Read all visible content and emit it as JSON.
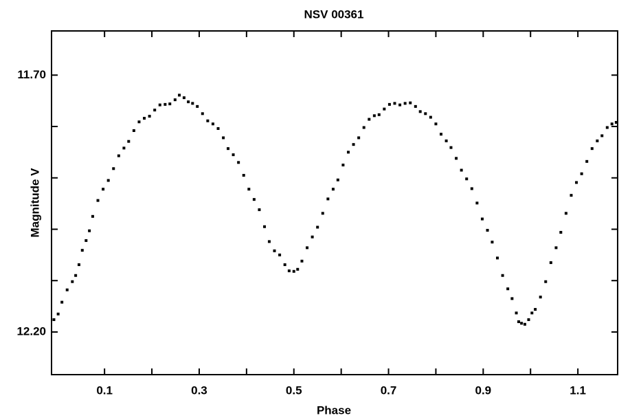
{
  "chart_data": {
    "type": "scatter",
    "title": "NSV 00361",
    "x_label": "Phase",
    "y_label": "Magnitude V",
    "xlim": [
      -0.012,
      1.184
    ],
    "ylim": [
      11.614,
      12.283
    ],
    "y_inverted": true,
    "xticks": [
      0.1,
      0.3,
      0.5,
      0.7,
      0.9,
      1.1
    ],
    "xminor_ticks": [
      0.2,
      0.4,
      0.6,
      0.8,
      1.0
    ],
    "yticks": [
      {
        "value": 11.7,
        "label": "11.70"
      },
      {
        "value": 12.2,
        "label": "12.20"
      }
    ],
    "yminor_ticks": [
      11.8,
      11.9,
      12.0,
      12.1
    ],
    "grid": false,
    "color": "#000000",
    "x": [
      -0.007,
      0.002,
      0.01,
      0.021,
      0.032,
      0.039,
      0.046,
      0.053,
      0.061,
      0.068,
      0.075,
      0.086,
      0.097,
      0.108,
      0.119,
      0.13,
      0.141,
      0.151,
      0.162,
      0.173,
      0.184,
      0.195,
      0.206,
      0.217,
      0.228,
      0.238,
      0.249,
      0.258,
      0.268,
      0.277,
      0.286,
      0.296,
      0.307,
      0.318,
      0.329,
      0.34,
      0.351,
      0.361,
      0.372,
      0.383,
      0.394,
      0.405,
      0.416,
      0.427,
      0.438,
      0.448,
      0.459,
      0.47,
      0.481,
      0.49,
      0.5,
      0.508,
      0.517,
      0.528,
      0.539,
      0.55,
      0.561,
      0.572,
      0.583,
      0.593,
      0.604,
      0.615,
      0.626,
      0.637,
      0.648,
      0.659,
      0.67,
      0.68,
      0.691,
      0.702,
      0.713,
      0.724,
      0.735,
      0.746,
      0.757,
      0.767,
      0.778,
      0.789,
      0.8,
      0.811,
      0.822,
      0.832,
      0.843,
      0.854,
      0.865,
      0.876,
      0.887,
      0.898,
      0.909,
      0.919,
      0.93,
      0.941,
      0.952,
      0.961,
      0.97,
      0.975,
      0.981,
      0.988,
      0.996,
      1.003,
      1.01,
      1.021,
      1.032,
      1.043,
      1.054,
      1.064,
      1.075,
      1.086,
      1.097,
      1.108,
      1.119,
      1.13,
      1.141,
      1.151,
      1.162,
      1.172,
      1.181
    ],
    "values": [
      12.176,
      12.165,
      12.142,
      12.118,
      12.102,
      12.09,
      12.069,
      12.041,
      12.022,
      12.003,
      11.975,
      11.944,
      11.922,
      11.905,
      11.882,
      11.857,
      11.842,
      11.829,
      11.808,
      11.791,
      11.784,
      11.78,
      11.768,
      11.758,
      11.757,
      11.756,
      11.748,
      11.739,
      11.744,
      11.752,
      11.755,
      11.761,
      11.775,
      11.789,
      11.795,
      11.804,
      11.822,
      11.843,
      11.855,
      11.87,
      11.895,
      11.922,
      11.942,
      11.962,
      11.995,
      12.024,
      12.042,
      12.05,
      12.069,
      12.081,
      12.082,
      12.078,
      12.062,
      12.036,
      12.015,
      11.996,
      11.969,
      11.941,
      11.922,
      11.904,
      11.875,
      11.85,
      11.835,
      11.822,
      11.802,
      11.786,
      11.779,
      11.777,
      11.766,
      11.757,
      11.755,
      11.758,
      11.755,
      11.754,
      11.761,
      11.771,
      11.775,
      11.782,
      11.795,
      11.815,
      11.828,
      11.841,
      11.862,
      11.885,
      11.902,
      11.921,
      11.949,
      11.98,
      12.002,
      12.025,
      12.056,
      12.09,
      12.116,
      12.135,
      12.163,
      12.18,
      12.183,
      12.185,
      12.176,
      12.163,
      12.156,
      12.132,
      12.102,
      12.065,
      12.036,
      12.006,
      11.969,
      11.934,
      11.909,
      11.892,
      11.868,
      11.843,
      11.828,
      11.818,
      11.802,
      11.795,
      11.792
    ]
  }
}
